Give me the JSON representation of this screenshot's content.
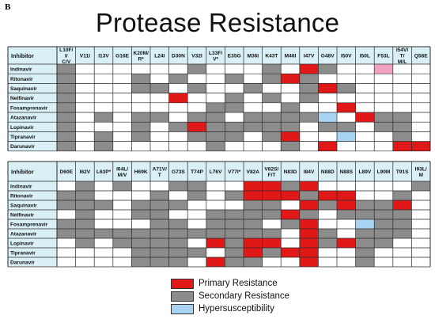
{
  "panel_letter": "B",
  "title": "Protease Resistance",
  "colors": {
    "P": "#e11818",
    "S": "#8c8c8c",
    "H": "#a9d3f2",
    "K": "#f1a2c2",
    "grid": "#2a2a2a",
    "header_bg": "#d9f0f7",
    "drug_bg": "#d9f0f7"
  },
  "legend": [
    {
      "key": "P",
      "label": "Primary Resistance"
    },
    {
      "key": "S",
      "label": "Secondary Resistance"
    },
    {
      "key": "H",
      "label": "Hypersusceptibility"
    }
  ],
  "chart_data": [
    {
      "type": "table",
      "header_label": "Inhibitor",
      "columns": [
        "L10F/I/C/V",
        "V11I",
        "I13V",
        "G16E",
        "K20M/R*",
        "L24I",
        "D30N",
        "V32I",
        "L33F/V*",
        "E35G",
        "M36I",
        "K43T",
        "M46I",
        "I47V",
        "G48V",
        "I50V",
        "I50L",
        "F53L",
        "I54V/T/M/L",
        "Q58E"
      ],
      "rows": [
        "Indinavir",
        "Ritonavir",
        "Saquinavir",
        "Nelfinavir",
        "Fosamprenavir",
        "Atazanavir",
        "Lopinavir",
        "Tipranavir",
        "Darunavir"
      ],
      "cells": [
        "S......S...S.PS..K..",
        "S...S.S..S.SPS......",
        "S...SS.S..S..SPS....",
        "S.....P..S.S.S......",
        "S.......SS..S..P....",
        "S.S.SS.SS.SSSSH.PSS.",
        "S...S.SPSSSSS.SS.SS.",
        "S.S.S..SSS.SP..H..S.",
        "S.S.....S...S.P...PP"
      ]
    },
    {
      "type": "table",
      "header_label": "Inhibitor",
      "columns": [
        "D60E",
        "I62V",
        "L63P*",
        "I64L/M/V",
        "H69K",
        "A71V/T",
        "G73S",
        "T74P",
        "L76V",
        "V77I*",
        "V82A",
        "V82S/F/T",
        "N83D",
        "I84V",
        "N88D",
        "N88S",
        "L89V",
        "L90M",
        "T91S",
        "I93L/M"
      ],
      "rows": [
        "Indinavir",
        "Ritonavir",
        "Saquinavir",
        "Nelfinavir",
        "Fosamprenavir",
        "Atazanavir",
        "Lopinavir",
        "Tipranavir",
        "Darunavir"
      ],
      "cells": [
        ".S.S..SS..PPSP.....S",
        "SS...S.S.SPPPSPP..S.",
        "SSS.SSS...SS.PSPSSP.",
        ".S..SS..SSSSPS.SSSS.",
        "SS...SS.SSS.SP..HSS.",
        "SSSSSSSSSSSS.PS.SSS.",
        ".S.SSSS.PSPP.PSPSS..",
        "....SSSS.SPSPP..S...",
        "....SSS.PSS..P..S..."
      ]
    }
  ]
}
